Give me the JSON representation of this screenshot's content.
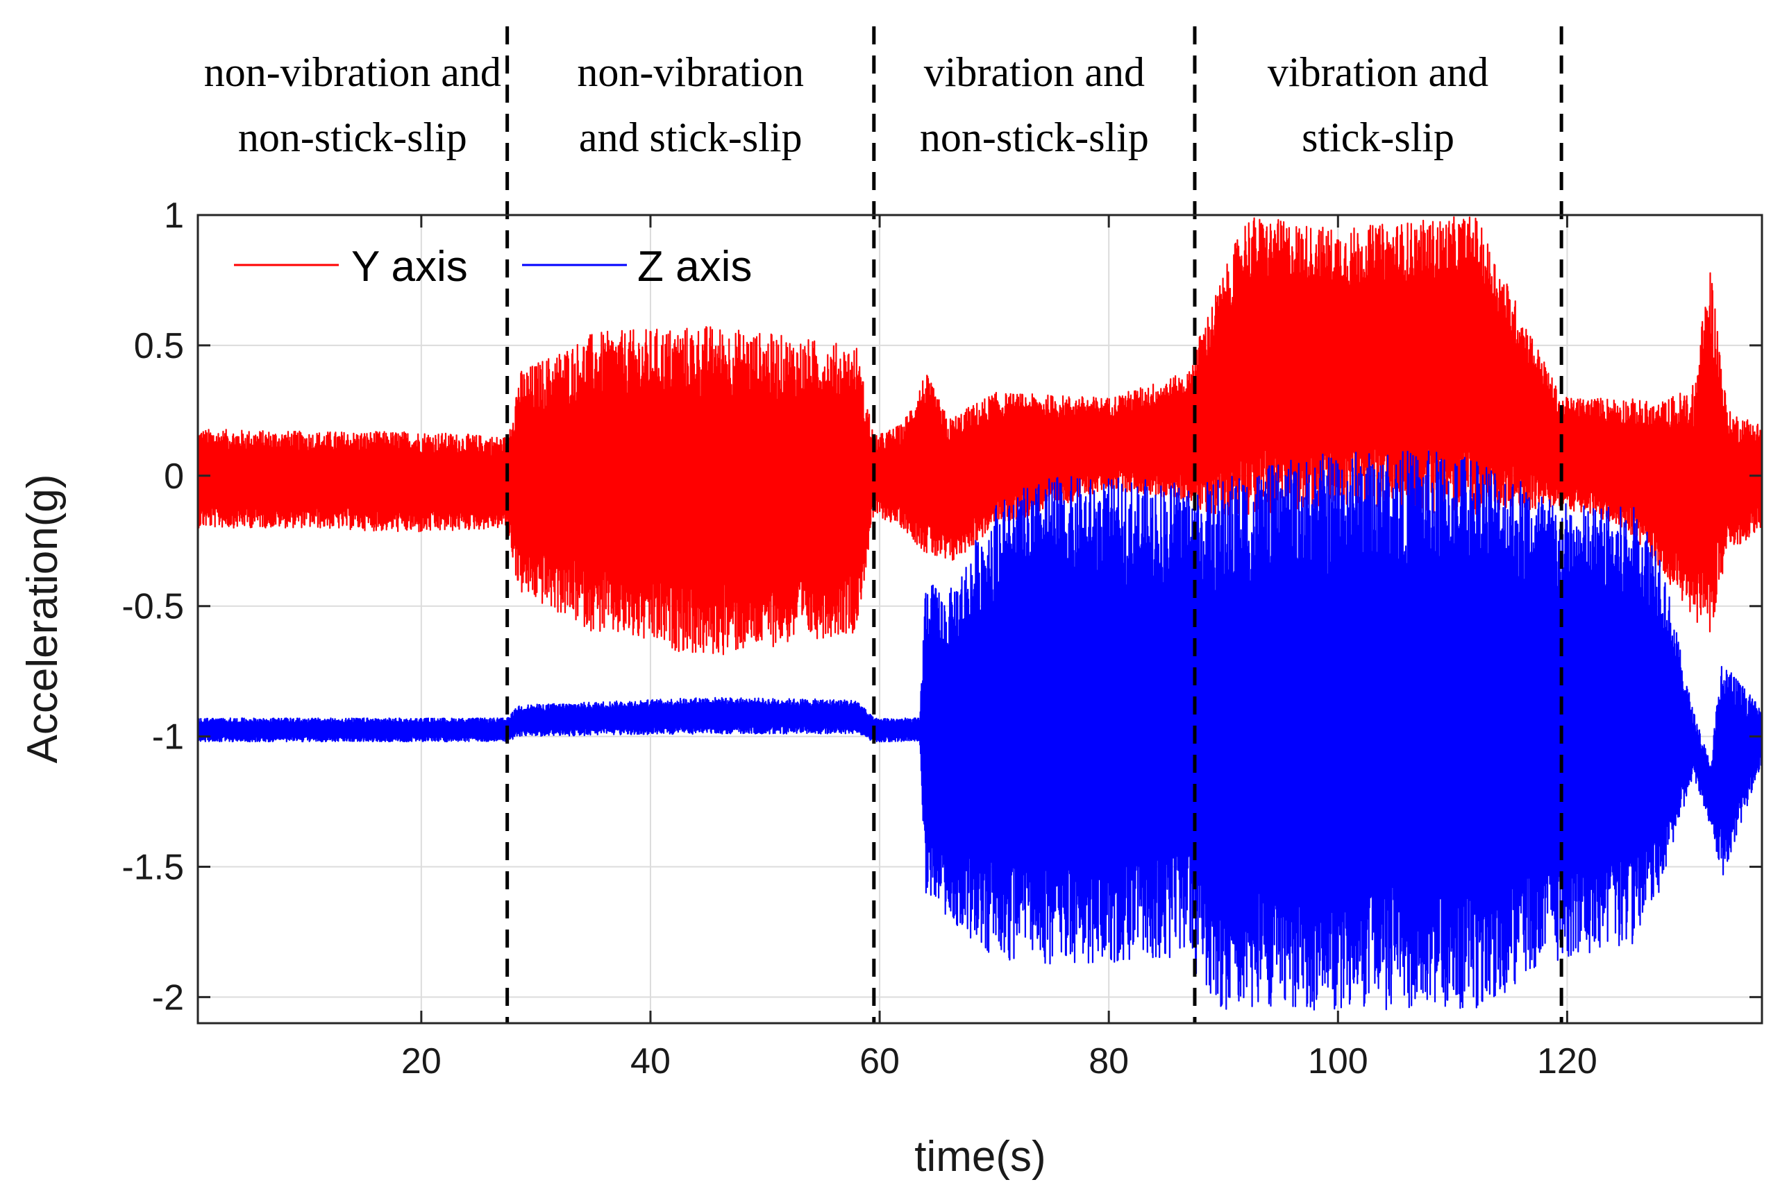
{
  "chart_data": {
    "type": "line",
    "title": "",
    "xlabel": "time(s)",
    "ylabel": "Acceleration(g)",
    "xlim": [
      0.5,
      137
    ],
    "ylim": [
      -2.1,
      1.0
    ],
    "xticks": [
      20,
      40,
      60,
      80,
      100,
      120
    ],
    "xtick_labels": [
      "20",
      "40",
      "60",
      "80",
      "100",
      "120"
    ],
    "yticks": [
      1,
      0.5,
      0,
      -0.5,
      -1,
      -1.5,
      -2
    ],
    "ytick_labels": [
      "1",
      "0.5",
      "0",
      "-0.5",
      "-1",
      "-1.5",
      "-2"
    ],
    "grid": true,
    "legend_position": "top-left",
    "boundaries": [
      27.5,
      59.5,
      87.5,
      119.5
    ],
    "regions": [
      {
        "line1": "non-vibration and",
        "line2": "non-stick-slip",
        "x_start": 0.5,
        "x_end": 27.5
      },
      {
        "line1": "non-vibration",
        "line2": "and stick-slip",
        "x_start": 27.5,
        "x_end": 59.5
      },
      {
        "line1": "vibration and",
        "line2": "non-stick-slip",
        "x_start": 59.5,
        "x_end": 87.5
      },
      {
        "line1": "vibration and",
        "line2": "stick-slip",
        "x_start": 87.5,
        "x_end": 119.5
      }
    ],
    "series": [
      {
        "name": "Y axis",
        "color": "#ff0000",
        "envelope": {
          "t": [
            0.5,
            10,
            20,
            27.5,
            28.5,
            35,
            45,
            58,
            59.5,
            62,
            64,
            66,
            70,
            80,
            87,
            88,
            92,
            100,
            112,
            119.5,
            125,
            128,
            131,
            132.5,
            134,
            137
          ],
          "upper": [
            0.18,
            0.17,
            0.17,
            0.15,
            0.4,
            0.55,
            0.58,
            0.5,
            0.15,
            0.2,
            0.4,
            0.22,
            0.32,
            0.3,
            0.4,
            0.55,
            1.0,
            0.95,
            1.0,
            0.3,
            0.3,
            0.28,
            0.35,
            0.82,
            0.25,
            0.2
          ],
          "lower": [
            -0.2,
            -0.2,
            -0.22,
            -0.2,
            -0.45,
            -0.6,
            -0.7,
            -0.6,
            -0.15,
            -0.2,
            -0.3,
            -0.35,
            -0.2,
            -0.05,
            -0.1,
            -0.15,
            -0.15,
            -0.12,
            -0.15,
            -0.12,
            -0.2,
            -0.35,
            -0.55,
            -0.6,
            -0.3,
            -0.2
          ]
        }
      },
      {
        "name": "Z axis",
        "color": "#0000ff",
        "envelope": {
          "t": [
            0.5,
            20,
            27.5,
            28.5,
            45,
            58,
            59.5,
            63.5,
            64,
            66,
            70,
            75,
            87,
            88,
            90,
            100,
            112,
            119.5,
            126,
            128,
            130,
            131,
            132.5,
            133.5,
            137
          ],
          "upper": [
            -0.93,
            -0.93,
            -0.93,
            -0.88,
            -0.85,
            -0.86,
            -0.93,
            -0.93,
            -0.4,
            -0.45,
            -0.1,
            0.0,
            -0.02,
            -0.03,
            0.0,
            0.1,
            0.1,
            -0.1,
            -0.12,
            -0.25,
            -0.7,
            -0.9,
            -1.1,
            -0.7,
            -0.9
          ],
          "lower": [
            -1.02,
            -1.02,
            -1.02,
            -1.0,
            -0.99,
            -0.99,
            -1.02,
            -1.02,
            -1.6,
            -1.7,
            -1.85,
            -1.88,
            -1.85,
            -1.95,
            -2.05,
            -2.05,
            -2.05,
            -1.85,
            -1.8,
            -1.6,
            -1.3,
            -1.15,
            -1.35,
            -1.55,
            -1.1
          ]
        }
      }
    ]
  }
}
